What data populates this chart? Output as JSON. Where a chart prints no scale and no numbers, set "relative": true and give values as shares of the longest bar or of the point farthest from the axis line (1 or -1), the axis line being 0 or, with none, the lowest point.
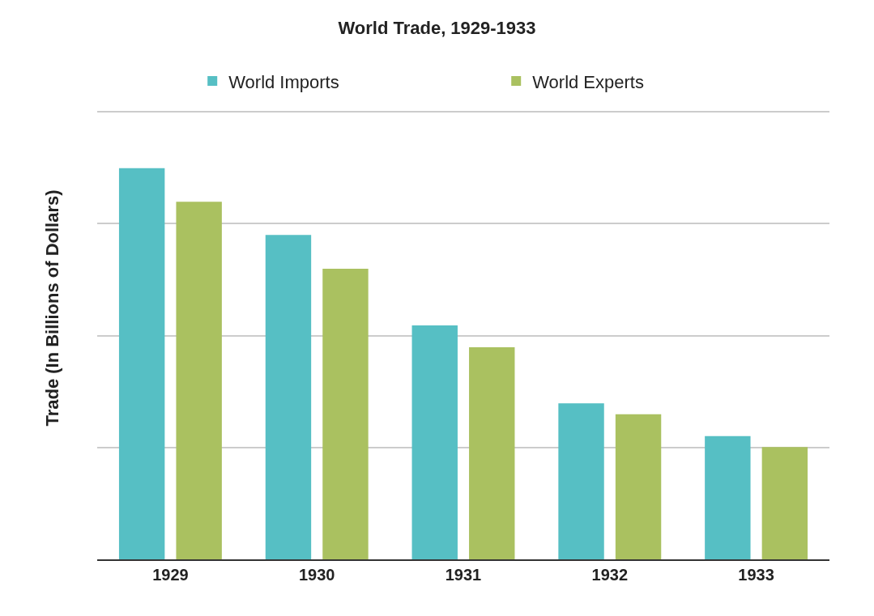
{
  "chart_data": {
    "type": "bar",
    "title": "World Trade, 1929-1933",
    "ylabel": "Trade (In Billions of Dollars)",
    "relative": true,
    "grid": "y",
    "legend": "top",
    "categories": [
      "1929",
      "1930",
      "1931",
      "1932",
      "1933"
    ],
    "series": [
      {
        "name": "World Imports",
        "color": "#56bfc4",
        "values": [
          1,
          0.829,
          0.598,
          0.399,
          0.315
        ]
      },
      {
        "name": "World Experts",
        "color": "#aac160",
        "values": [
          0.914,
          0.743,
          0.542,
          0.371,
          0.287
        ]
      }
    ]
  }
}
